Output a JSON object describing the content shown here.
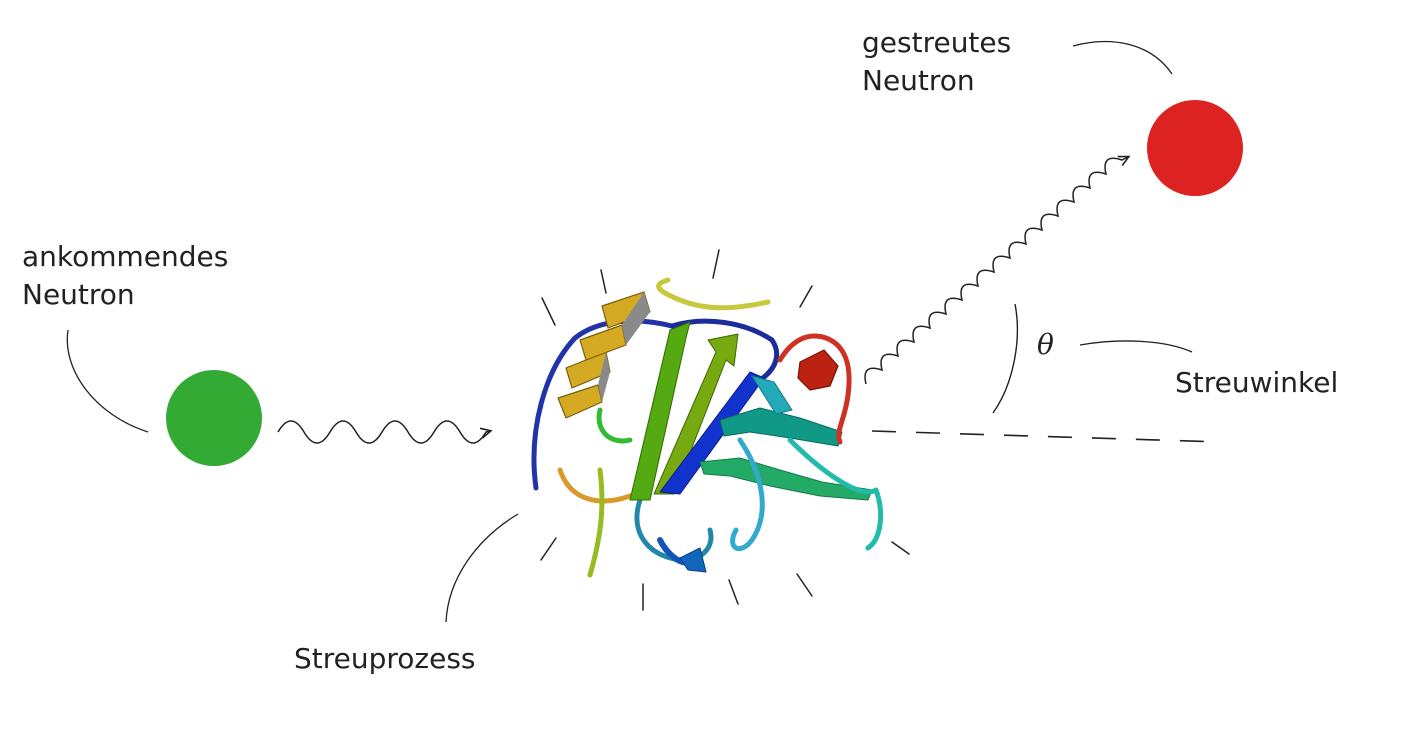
{
  "labels": {
    "incoming_line1": "ankommendes",
    "incoming_line2": "Neutron",
    "scattered_line1": "gestreutes",
    "scattered_line2": "Neutron",
    "angle_symbol": "θ",
    "angle_label": "Streuwinkel",
    "process_label": "Streuprozess"
  },
  "colors": {
    "incoming_neutron": "#33aa33",
    "scattered_neutron": "#dd2222",
    "ink": "#222222"
  },
  "icons": {
    "incoming": "green-neutron-sphere",
    "scattered": "red-neutron-sphere",
    "target": "protein-ribbon-structure"
  }
}
